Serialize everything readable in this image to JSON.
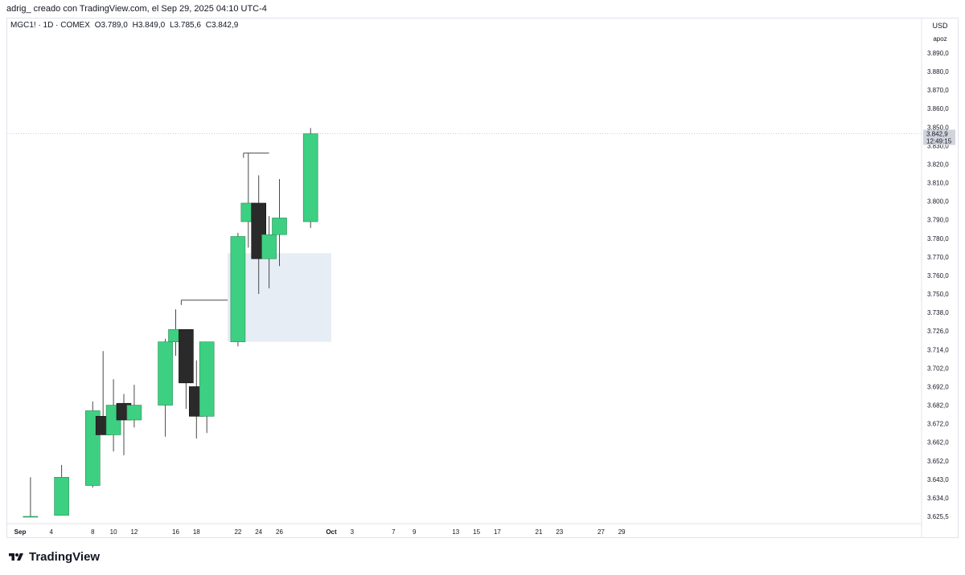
{
  "header": {
    "attribution": "adrig_ creado con TradingView.com, el Sep 29, 2025 04:10 UTC-4"
  },
  "legend": {
    "symbol": "MGC1! · 1D · COMEX",
    "open": "O3.789,0",
    "high": "H3.849,0",
    "low": "L3.785,6",
    "close": "C3.842,9"
  },
  "price_scale": {
    "currency": "USD",
    "scale_button": "apoz",
    "last_price_label": "3.842,9",
    "countdown_label": "12:49:15"
  },
  "footer": {
    "brand": "TradingView"
  },
  "colors": {
    "up": "#3dd082",
    "down": "#2a2a2a",
    "wick": "#4a4a4a",
    "zone": "#e6edf5",
    "last_price_tag": "#d1d4dc"
  },
  "chart_data": {
    "type": "candlestick",
    "y_axis_ticks": [
      "3.890,0",
      "3.880,0",
      "3.870,0",
      "3.860,0",
      "3.850,0",
      "3.830,0",
      "3.820,0",
      "3.810,0",
      "3.800,0",
      "3.790,0",
      "3.780,0",
      "3.770,0",
      "3.760,0",
      "3.750,0",
      "3.738,0",
      "3.726,0",
      "3.714,0",
      "3.702,0",
      "3.692,0",
      "3.682,0",
      "3.672,0",
      "3.662,0",
      "3.652,0",
      "3.643,0",
      "3.634,0",
      "3.625,5"
    ],
    "x_axis_ticks": [
      "Sep",
      "4",
      "8",
      "10",
      "12",
      "16",
      "18",
      "22",
      "24",
      "26",
      "Oct",
      "3",
      "7",
      "9",
      "13",
      "15",
      "17",
      "21",
      "23",
      "27",
      "29"
    ],
    "candles": [
      {
        "date": "Sep 2",
        "open": 3625.5,
        "high": 3644.0,
        "low": 3625.5,
        "close": 3625.5
      },
      {
        "date": "Sep 5",
        "open": 3626.0,
        "high": 3650.0,
        "low": 3626.0,
        "close": 3644.0
      },
      {
        "date": "Sep 8",
        "open": 3640.0,
        "high": 3684.0,
        "low": 3639.0,
        "close": 3679.0
      },
      {
        "date": "Sep 9",
        "open": 3676.0,
        "high": 3713.0,
        "low": 3667.0,
        "close": 3666.0
      },
      {
        "date": "Sep 10",
        "open": 3666.0,
        "high": 3696.0,
        "low": 3657.0,
        "close": 3682.0
      },
      {
        "date": "Sep 11",
        "open": 3683.0,
        "high": 3688.0,
        "low": 3655.0,
        "close": 3674.0
      },
      {
        "date": "Sep 12",
        "open": 3674.0,
        "high": 3693.0,
        "low": 3670.0,
        "close": 3682.0
      },
      {
        "date": "Sep 15",
        "open": 3682.0,
        "high": 3721.0,
        "low": 3665.0,
        "close": 3719.0
      },
      {
        "date": "Sep 16",
        "open": 3719.0,
        "high": 3740.0,
        "low": 3710.0,
        "close": 3727.0
      },
      {
        "date": "Sep 17",
        "open": 3727.0,
        "high": 3727.0,
        "low": 3680.0,
        "close": 3694.0
      },
      {
        "date": "Sep 18",
        "open": 3692.0,
        "high": 3707.0,
        "low": 3664.0,
        "close": 3676.0
      },
      {
        "date": "Sep 19",
        "open": 3676.0,
        "high": 3719.0,
        "low": 3667.0,
        "close": 3719.0
      },
      {
        "date": "Sep 22",
        "open": 3719.0,
        "high": 3783.0,
        "low": 3716.0,
        "close": 3781.0
      },
      {
        "date": "Sep 23",
        "open": 3789.0,
        "high": 3826.0,
        "low": 3775.0,
        "close": 3799.0
      },
      {
        "date": "Sep 24",
        "open": 3799.0,
        "high": 3814.0,
        "low": 3750.0,
        "close": 3769.0
      },
      {
        "date": "Sep 25",
        "open": 3769.0,
        "high": 3792.0,
        "low": 3753.0,
        "close": 3782.0
      },
      {
        "date": "Sep 26",
        "open": 3782.0,
        "high": 3812.0,
        "low": 3765.0,
        "close": 3791.0
      },
      {
        "date": "Sep 29",
        "open": 3789.0,
        "high": 3849.0,
        "low": 3785.6,
        "close": 3842.9
      }
    ],
    "annotations": [
      {
        "type": "zone",
        "from": "Sep 21",
        "to": "Oct 1",
        "top": 3772.0,
        "bottom": 3719.0
      },
      {
        "type": "level_line",
        "price": 3746.0,
        "from": "Sep 17",
        "to": "Sep 21"
      },
      {
        "type": "level_line",
        "price": 3826.0,
        "from": "Sep 23",
        "to": "Sep 25"
      }
    ],
    "last_price": 3842.9,
    "grid": false
  }
}
